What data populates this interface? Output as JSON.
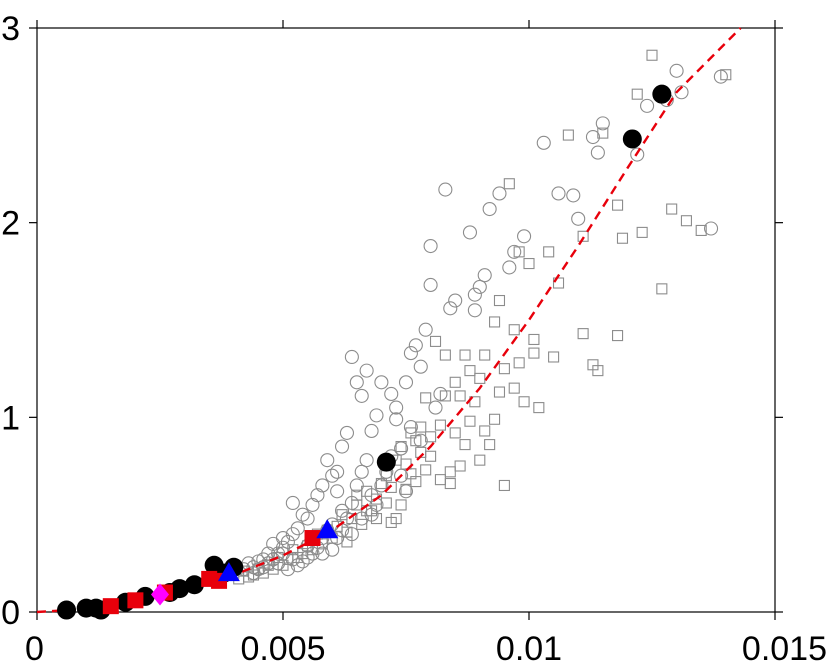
{
  "chart_data": {
    "type": "scatter",
    "title": "",
    "xlabel": "",
    "ylabel": "",
    "xlim": [
      0,
      0.015
    ],
    "ylim": [
      0,
      3
    ],
    "grid": false,
    "x_ticks": [
      {
        "value": 0,
        "label": "0"
      },
      {
        "value": 0.005,
        "label": "0.005"
      },
      {
        "value": 0.01,
        "label": "0.01"
      },
      {
        "value": 0.015,
        "label": "0.015"
      }
    ],
    "y_ticks": [
      {
        "value": 0,
        "label": "0"
      },
      {
        "value": 1,
        "label": "1"
      },
      {
        "value": 2,
        "label": "2"
      },
      {
        "value": 3,
        "label": "3"
      }
    ],
    "series": [
      {
        "marker": "open-circle",
        "color": "#8c8c8c",
        "points": [
          [
            0.0122,
            2.35
          ],
          [
            0.0124,
            2.6
          ],
          [
            0.013,
            2.78
          ],
          [
            0.0131,
            2.67
          ],
          [
            0.0128,
            2.63
          ],
          [
            0.0137,
            1.97
          ],
          [
            0.0139,
            2.75
          ],
          [
            0.0115,
            2.51
          ],
          [
            0.0113,
            2.44
          ],
          [
            0.0114,
            2.36
          ],
          [
            0.0109,
            2.14
          ],
          [
            0.011,
            2.02
          ],
          [
            0.0106,
            2.15
          ],
          [
            0.0099,
            1.93
          ],
          [
            0.0103,
            2.41
          ],
          [
            0.0097,
            1.85
          ],
          [
            0.0096,
            1.77
          ],
          [
            0.0094,
            2.15
          ],
          [
            0.0092,
            2.07
          ],
          [
            0.0091,
            1.73
          ],
          [
            0.009,
            1.67
          ],
          [
            0.0089,
            1.63
          ],
          [
            0.0089,
            1.55
          ],
          [
            0.0088,
            1.95
          ],
          [
            0.0085,
            1.6
          ],
          [
            0.0084,
            1.56
          ],
          [
            0.0083,
            2.17
          ],
          [
            0.008,
            1.68
          ],
          [
            0.008,
            1.88
          ],
          [
            0.0079,
            1.45
          ],
          [
            0.0078,
            1.26
          ],
          [
            0.0077,
            1.37
          ],
          [
            0.0076,
            1.33
          ],
          [
            0.0075,
            1.18
          ],
          [
            0.0073,
            1.05
          ],
          [
            0.0073,
            0.99
          ],
          [
            0.0072,
            1.12
          ],
          [
            0.007,
            1.18
          ],
          [
            0.0069,
            1.01
          ],
          [
            0.0068,
            0.93
          ],
          [
            0.0067,
            1.24
          ],
          [
            0.0066,
            1.11
          ],
          [
            0.0065,
            1.18
          ],
          [
            0.0064,
            1.31
          ],
          [
            0.0063,
            0.92
          ],
          [
            0.0062,
            0.85
          ],
          [
            0.0061,
            0.72
          ],
          [
            0.006,
            0.7
          ],
          [
            0.0059,
            0.78
          ],
          [
            0.0058,
            0.65
          ],
          [
            0.0057,
            0.6
          ],
          [
            0.0056,
            0.55
          ],
          [
            0.0055,
            0.48
          ],
          [
            0.0054,
            0.5
          ],
          [
            0.0053,
            0.43
          ],
          [
            0.0052,
            0.4
          ],
          [
            0.0051,
            0.36
          ],
          [
            0.005,
            0.33
          ],
          [
            0.0049,
            0.3
          ],
          [
            0.0048,
            0.27
          ],
          [
            0.0047,
            0.25
          ],
          [
            0.0046,
            0.23
          ],
          [
            0.0045,
            0.22
          ],
          [
            0.0044,
            0.2
          ],
          [
            0.0061,
            0.62
          ],
          [
            0.0062,
            0.52
          ],
          [
            0.006,
            0.45
          ],
          [
            0.0059,
            0.42
          ],
          [
            0.0058,
            0.38
          ],
          [
            0.0057,
            0.33
          ],
          [
            0.0056,
            0.3
          ],
          [
            0.0055,
            0.28
          ],
          [
            0.0054,
            0.26
          ],
          [
            0.0053,
            0.24
          ],
          [
            0.0052,
            0.27
          ],
          [
            0.0051,
            0.22
          ],
          [
            0.005,
            0.3
          ],
          [
            0.0049,
            0.25
          ],
          [
            0.0065,
            0.65
          ],
          [
            0.0066,
            0.72
          ],
          [
            0.0067,
            0.78
          ],
          [
            0.0068,
            0.6
          ],
          [
            0.0069,
            0.55
          ],
          [
            0.007,
            0.65
          ],
          [
            0.0071,
            0.72
          ],
          [
            0.0072,
            0.8
          ],
          [
            0.0064,
            0.56
          ],
          [
            0.0063,
            0.48
          ],
          [
            0.0062,
            0.42
          ],
          [
            0.0061,
            0.38
          ],
          [
            0.0047,
            0.3
          ],
          [
            0.0046,
            0.27
          ],
          [
            0.0045,
            0.26
          ],
          [
            0.0044,
            0.23
          ],
          [
            0.0043,
            0.25
          ],
          [
            0.0042,
            0.22
          ],
          [
            0.0078,
            0.88
          ],
          [
            0.0076,
            0.95
          ],
          [
            0.0074,
            0.84
          ],
          [
            0.0081,
            1.05
          ],
          [
            0.0082,
            1.12
          ],
          [
            0.0074,
            0.7
          ],
          [
            0.0075,
            0.62
          ],
          [
            0.0048,
            0.35
          ],
          [
            0.0052,
            0.56
          ],
          [
            0.005,
            0.38
          ],
          [
            0.0055,
            0.34
          ],
          [
            0.0058,
            0.3
          ],
          [
            0.006,
            0.32
          ],
          [
            0.0064,
            0.4
          ],
          [
            0.0066,
            0.48
          ],
          [
            0.0068,
            0.5
          ]
        ]
      },
      {
        "marker": "open-square",
        "color": "#8c8c8c",
        "points": [
          [
            0.0125,
            2.86
          ],
          [
            0.014,
            2.76
          ],
          [
            0.0122,
            2.66
          ],
          [
            0.0129,
            2.07
          ],
          [
            0.0132,
            2.01
          ],
          [
            0.0135,
            1.96
          ],
          [
            0.0127,
            1.66
          ],
          [
            0.0123,
            1.95
          ],
          [
            0.0119,
            1.92
          ],
          [
            0.0118,
            2.09
          ],
          [
            0.0115,
            2.46
          ],
          [
            0.0108,
            2.45
          ],
          [
            0.0111,
            1.93
          ],
          [
            0.0104,
            1.85
          ],
          [
            0.0106,
            1.69
          ],
          [
            0.01,
            1.79
          ],
          [
            0.0098,
            1.85
          ],
          [
            0.0096,
            2.2
          ],
          [
            0.0094,
            1.6
          ],
          [
            0.0093,
            1.49
          ],
          [
            0.0101,
            1.4
          ],
          [
            0.0105,
            1.31
          ],
          [
            0.0101,
            1.33
          ],
          [
            0.0098,
            1.28
          ],
          [
            0.0095,
            1.25
          ],
          [
            0.0094,
            1.13
          ],
          [
            0.0091,
            1.32
          ],
          [
            0.0087,
            1.32
          ],
          [
            0.0085,
            1.18
          ],
          [
            0.0083,
            1.11
          ],
          [
            0.0088,
            1.24
          ],
          [
            0.0091,
            0.93
          ],
          [
            0.0087,
            0.86
          ],
          [
            0.009,
            0.78
          ],
          [
            0.0086,
            0.75
          ],
          [
            0.0084,
            0.72
          ],
          [
            0.0082,
            0.68
          ],
          [
            0.008,
            0.8
          ],
          [
            0.0079,
            0.73
          ],
          [
            0.0077,
            0.67
          ],
          [
            0.0076,
            0.71
          ],
          [
            0.0075,
            0.63
          ],
          [
            0.0074,
            0.55
          ],
          [
            0.0073,
            0.48
          ],
          [
            0.0072,
            0.46
          ],
          [
            0.0111,
            1.43
          ],
          [
            0.0114,
            1.24
          ],
          [
            0.0118,
            1.42
          ],
          [
            0.0113,
            1.27
          ],
          [
            0.0097,
            1.45
          ],
          [
            0.0093,
            0.99
          ],
          [
            0.0097,
            1.15
          ],
          [
            0.0095,
            0.65
          ],
          [
            0.0092,
            0.86
          ],
          [
            0.0088,
            0.98
          ],
          [
            0.0086,
            1.11
          ],
          [
            0.0083,
            1.32
          ],
          [
            0.0081,
            1.39
          ],
          [
            0.0079,
            1.1
          ],
          [
            0.0078,
            0.95
          ],
          [
            0.0077,
            0.88
          ],
          [
            0.0076,
            0.92
          ],
          [
            0.0074,
            0.85
          ],
          [
            0.0073,
            0.78
          ],
          [
            0.0071,
            0.7
          ],
          [
            0.007,
            0.66
          ],
          [
            0.0069,
            0.58
          ],
          [
            0.0068,
            0.52
          ],
          [
            0.0067,
            0.62
          ],
          [
            0.0066,
            0.45
          ],
          [
            0.0065,
            0.55
          ],
          [
            0.0064,
            0.48
          ],
          [
            0.0063,
            0.41
          ],
          [
            0.0062,
            0.5
          ],
          [
            0.0061,
            0.44
          ],
          [
            0.006,
            0.38
          ],
          [
            0.0059,
            0.42
          ],
          [
            0.0058,
            0.35
          ],
          [
            0.0057,
            0.4
          ],
          [
            0.0056,
            0.32
          ],
          [
            0.0055,
            0.34
          ],
          [
            0.0054,
            0.3
          ],
          [
            0.0053,
            0.28
          ],
          [
            0.0052,
            0.32
          ],
          [
            0.0051,
            0.27
          ],
          [
            0.005,
            0.24
          ],
          [
            0.0049,
            0.28
          ],
          [
            0.0048,
            0.22
          ],
          [
            0.0047,
            0.24
          ],
          [
            0.0046,
            0.2
          ],
          [
            0.0045,
            0.22
          ],
          [
            0.0044,
            0.19
          ],
          [
            0.0043,
            0.18
          ],
          [
            0.0042,
            0.21
          ],
          [
            0.0041,
            0.17
          ],
          [
            0.004,
            0.2
          ],
          [
            0.0063,
            0.36
          ],
          [
            0.0065,
            0.6
          ],
          [
            0.0067,
            0.52
          ],
          [
            0.0069,
            0.48
          ],
          [
            0.0071,
            0.56
          ],
          [
            0.0072,
            0.64
          ],
          [
            0.0075,
            0.76
          ],
          [
            0.0078,
            0.82
          ],
          [
            0.008,
            0.9
          ],
          [
            0.0082,
            0.96
          ],
          [
            0.0084,
            0.66
          ],
          [
            0.0085,
            0.92
          ],
          [
            0.0089,
            1.08
          ],
          [
            0.009,
            1.2
          ],
          [
            0.0099,
            1.08
          ],
          [
            0.0102,
            1.05
          ]
        ]
      },
      {
        "marker": "filled-circle",
        "color": "#000000",
        "points": [
          [
            0.0006,
            0.01
          ],
          [
            0.001,
            0.02
          ],
          [
            0.0012,
            0.02
          ],
          [
            0.0013,
            0.01
          ],
          [
            0.0018,
            0.05
          ],
          [
            0.0022,
            0.08
          ],
          [
            0.0029,
            0.12
          ],
          [
            0.0032,
            0.14
          ],
          [
            0.0036,
            0.24
          ],
          [
            0.0038,
            0.2
          ],
          [
            0.004,
            0.23
          ],
          [
            0.0071,
            0.77
          ],
          [
            0.0121,
            2.43
          ],
          [
            0.0127,
            2.66
          ],
          [
            0.0027,
            0.1
          ]
        ]
      },
      {
        "marker": "filled-square",
        "color": "#e8000b",
        "points": [
          [
            0.0015,
            0.03
          ],
          [
            0.002,
            0.06
          ],
          [
            0.0026,
            0.1
          ],
          [
            0.0035,
            0.17
          ],
          [
            0.0037,
            0.16
          ],
          [
            0.0056,
            0.38
          ]
        ]
      },
      {
        "marker": "filled-triangle",
        "color": "#0000ff",
        "points": [
          [
            0.0039,
            0.2
          ],
          [
            0.0059,
            0.42
          ]
        ]
      },
      {
        "marker": "filled-diamond",
        "color": "#ff00ff",
        "points": [
          [
            0.0025,
            0.09
          ]
        ]
      }
    ],
    "fit_line": {
      "style": "dashed",
      "color": "#e8000b",
      "points": [
        [
          0.0,
          0.0
        ],
        [
          0.001,
          0.015
        ],
        [
          0.002,
          0.045
        ],
        [
          0.003,
          0.11
        ],
        [
          0.004,
          0.19
        ],
        [
          0.005,
          0.29
        ],
        [
          0.006,
          0.42
        ],
        [
          0.007,
          0.6
        ],
        [
          0.008,
          0.85
        ],
        [
          0.009,
          1.15
        ],
        [
          0.01,
          1.5
        ],
        [
          0.011,
          1.88
        ],
        [
          0.012,
          2.28
        ],
        [
          0.013,
          2.67
        ],
        [
          0.0143,
          3.0
        ]
      ]
    }
  }
}
